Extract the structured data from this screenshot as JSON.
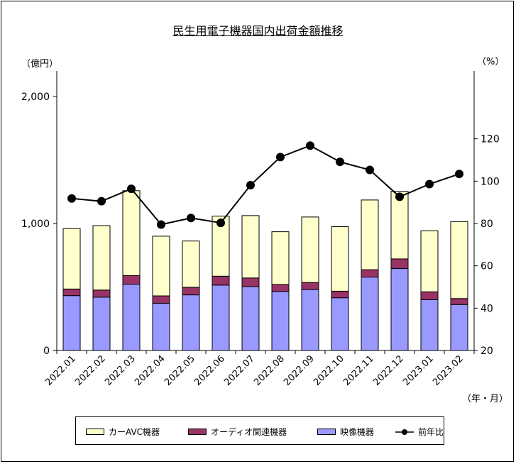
{
  "chart_data": {
    "type": "bar",
    "title": "民生用電子機器国内出荷金額推移",
    "left_unit": "（億円）",
    "right_unit": "（%）",
    "x_unit": "（年・月）",
    "categories": [
      "2022.01",
      "2022.02",
      "2022.03",
      "2022.04",
      "2022.05",
      "2022.06",
      "2022.07",
      "2022.08",
      "2022.09",
      "2022.10",
      "2022.11",
      "2022.12",
      "2023.01",
      "2023.02"
    ],
    "series": [
      {
        "name": "映像機器",
        "kind": "bar",
        "color": "#9999ff",
        "values": [
          432,
          420,
          522,
          372,
          438,
          515,
          503,
          465,
          480,
          415,
          578,
          645,
          400,
          362
        ]
      },
      {
        "name": "オーディオ関連機器",
        "kind": "bar",
        "color": "#993366",
        "values": [
          52,
          56,
          68,
          58,
          60,
          70,
          68,
          55,
          55,
          52,
          58,
          76,
          62,
          47
        ]
      },
      {
        "name": "カーAVC機器",
        "kind": "bar",
        "color": "#ffffcc",
        "values": [
          476,
          507,
          668,
          470,
          364,
          473,
          491,
          415,
          516,
          508,
          549,
          532,
          481,
          606
        ]
      },
      {
        "name": "前年比",
        "kind": "line",
        "color": "#000000",
        "axis": "right",
        "values": [
          91.8,
          90.5,
          96.4,
          79.5,
          82.6,
          80.3,
          98.1,
          111.4,
          116.8,
          109.1,
          105.3,
          92.6,
          98.6,
          103.4
        ]
      }
    ],
    "y_left": {
      "min": 0,
      "max": 2000,
      "ticks": [
        0,
        1000,
        2000
      ],
      "tick_labels": [
        "0",
        "1,000",
        "2,000"
      ]
    },
    "y_right": {
      "min": 20,
      "max": 140,
      "ticks": [
        20,
        40,
        60,
        80,
        100,
        120
      ],
      "tick_labels": [
        "20",
        "40",
        "60",
        "80",
        "100",
        "120"
      ]
    },
    "legend": [
      "カーAVC機器",
      "オーディオ関連機器",
      "映像機器",
      "前年比"
    ],
    "legend_position": "bottom",
    "grid": false
  }
}
